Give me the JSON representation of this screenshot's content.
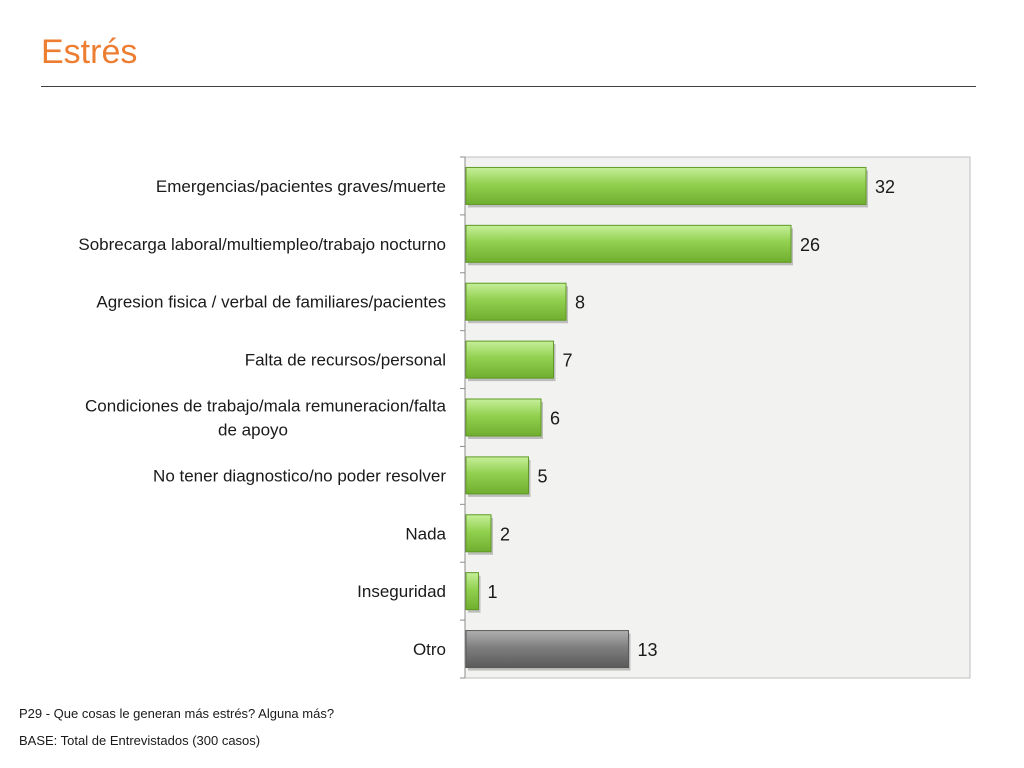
{
  "page": {
    "title": "Estrés",
    "footnote_question": "P29 - Que cosas le generan más estrés? Alguna más?",
    "footnote_base": "BASE: Total de Entrevistados (300 casos)"
  },
  "colors": {
    "title": "#ed7d31",
    "bar_primary": "#92d050",
    "bar_other": "#7f7f7f",
    "plot_background": "#f2f2f0"
  },
  "chart_data": {
    "type": "bar",
    "orientation": "horizontal",
    "categories": [
      [
        "Emergencias/pacientes graves/muerte"
      ],
      [
        "Sobrecarga laboral/multiempleo/trabajo nocturno"
      ],
      [
        "Agresion fisica / verbal de familiares/pacientes"
      ],
      [
        "Falta de recursos/personal"
      ],
      [
        "Condiciones de trabajo/mala remuneracion/falta",
        "de apoyo"
      ],
      [
        "No tener diagnostico/no poder resolver"
      ],
      [
        "Nada"
      ],
      [
        "Inseguridad"
      ],
      [
        "Otro"
      ]
    ],
    "values": [
      32,
      26,
      8,
      7,
      6,
      5,
      2,
      1,
      13
    ],
    "highlight": [
      false,
      false,
      false,
      false,
      false,
      false,
      false,
      false,
      true
    ],
    "data_labels": true,
    "xlim": [
      0,
      40
    ],
    "grid": false,
    "legend": "none"
  }
}
